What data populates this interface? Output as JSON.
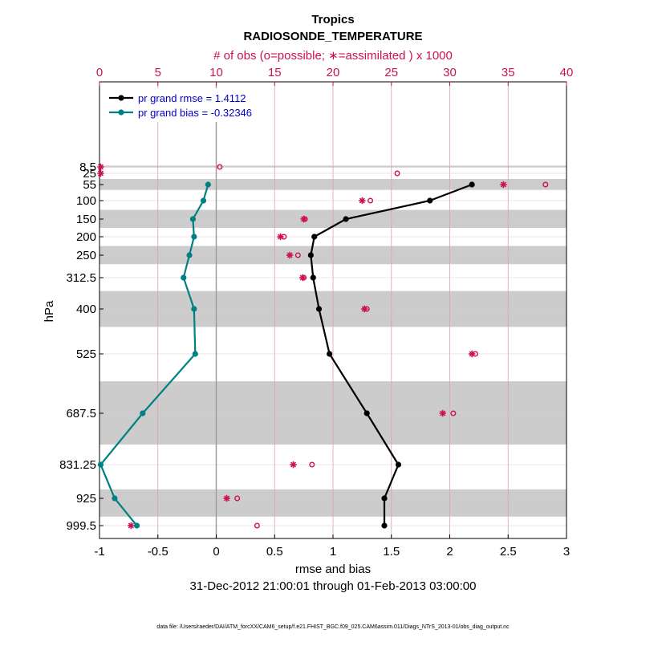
{
  "chart_data": {
    "type": "line",
    "title": "Tropics",
    "subtitle": "RADIOSONDE_TEMPERATURE",
    "top_axis_label": "# of obs (o=possible; ∗=assimilated ) x 1000",
    "top_axis_ticks": [
      "0",
      "5",
      "10",
      "15",
      "20",
      "25",
      "30",
      "35",
      "40"
    ],
    "top_axis_range": [
      0,
      40
    ],
    "xlabel": "rmse and bias",
    "xlim": [
      -1,
      3
    ],
    "x_ticks": [
      "-1",
      "-0.5",
      "0",
      "0.5",
      "1",
      "1.5",
      "2",
      "2.5",
      "3"
    ],
    "x_tick_values": [
      -1,
      -0.5,
      0,
      0.5,
      1,
      1.5,
      2,
      2.5,
      3
    ],
    "ylabel": "hPa",
    "levels": [
      "8.5",
      "25",
      "55",
      "100",
      "150",
      "200",
      "250",
      "312.5",
      "400",
      "525",
      "687.5",
      "831.25",
      "925",
      "999.5"
    ],
    "level_values": [
      8.5,
      25,
      55,
      100,
      150,
      200,
      250,
      312.5,
      400,
      525,
      687.5,
      831.25,
      925,
      999.5
    ],
    "shaded_layers": [
      [
        5,
        10
      ],
      [
        40,
        70
      ],
      [
        125,
        175
      ],
      [
        225,
        275
      ],
      [
        350,
        450
      ],
      [
        600,
        775
      ],
      [
        900,
        975
      ]
    ],
    "time_range": "31-Dec-2012 21:00:01 through 01-Feb-2013 03:00:00",
    "footer": "data file: /Users/raeder/DAI/ATM_forcXX/CAM6_setup/f.e21.FHIST_BGC.f09_025.CAM6assim.011/Diags_NTrS_2013-01/obs_diag_output.nc",
    "legend_position": "top-left",
    "series": [
      {
        "name": "pr grand rmse = 1.4112",
        "color": "#000000",
        "levels": [
          55,
          100,
          150,
          200,
          250,
          312.5,
          400,
          525,
          687.5,
          831.25,
          925,
          999.5
        ],
        "values": [
          2.19,
          1.83,
          1.11,
          0.84,
          0.81,
          0.83,
          0.88,
          0.97,
          1.29,
          1.56,
          1.44,
          1.44
        ]
      },
      {
        "name": "pr grand bias = -0.32346",
        "color": "#008080",
        "levels": [
          55,
          100,
          150,
          200,
          250,
          312.5,
          400,
          525,
          687.5,
          831.25,
          925,
          999.5
        ],
        "values": [
          -0.07,
          -0.11,
          -0.2,
          -0.19,
          -0.23,
          -0.28,
          -0.19,
          -0.18,
          -0.63,
          -0.99,
          -0.87,
          -0.68
        ]
      }
    ],
    "obs_possible": {
      "marker": "o",
      "color": "#cc1155",
      "levels": [
        8.5,
        25,
        55,
        100,
        150,
        200,
        250,
        312.5,
        400,
        525,
        687.5,
        831.25,
        925,
        999.5
      ],
      "values": [
        10.3,
        25.5,
        38.2,
        23.2,
        17.6,
        15.8,
        17.0,
        17.5,
        22.9,
        32.2,
        30.3,
        18.2,
        11.8,
        13.5
      ]
    },
    "obs_assimilated": {
      "marker": "*",
      "color": "#cc1155",
      "levels": [
        8.5,
        25,
        55,
        100,
        150,
        200,
        250,
        312.5,
        400,
        525,
        687.5,
        831.25,
        925,
        999.5
      ],
      "values": [
        0.1,
        0.1,
        34.6,
        22.5,
        17.5,
        15.5,
        16.3,
        17.4,
        22.7,
        31.9,
        29.4,
        16.6,
        10.9,
        2.7
      ]
    }
  }
}
